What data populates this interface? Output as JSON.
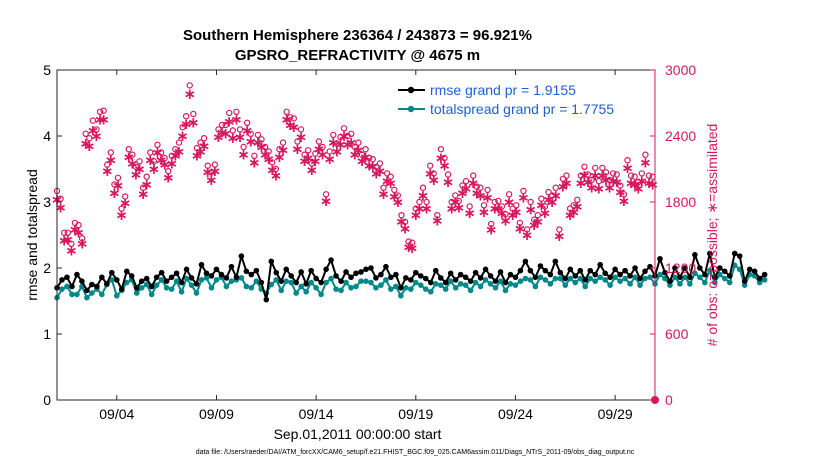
{
  "title_line1": "Southern Hemisphere 236364 / 243873 = 96.921%",
  "title_line2": "GPSRO_REFRACTIVITY @ 4675 m",
  "x_start_label": "Sep.01,2011 00:00:00 start",
  "footnote": "data file: /Users/raeder/DAI/ATM_forcXX/CAM6_setup/f.e21.FHIST_BGC.f09_025.CAM6assim.011/Diags_NTrS_2011-09/obs_diag_output.nc",
  "colors": {
    "rmse": "#000000",
    "spread": "#00888a",
    "obs": "#d6195f",
    "legend_text": "#1f5fd6"
  },
  "chart_data": {
    "type": "line",
    "title": "Southern Hemisphere 236364 / 243873 = 96.921%",
    "subtitle": "GPSRO_REFRACTIVITY @ 4675 m",
    "xlabel": "Sep.01,2011 00:00:00 start",
    "ylabel_left": "rmse and totalspread",
    "ylabel_right": "# of obs: o=possible; ∗=assimilated",
    "xlim": [
      1.0,
      31.0
    ],
    "ylim_left": [
      0,
      5
    ],
    "ylim_right": [
      0,
      3000
    ],
    "x_ticks": [
      4,
      9,
      14,
      19,
      24,
      29
    ],
    "x_tick_labels": [
      "09/04",
      "09/09",
      "09/14",
      "09/19",
      "09/24",
      "09/29"
    ],
    "y_left_ticks": [
      0,
      1,
      2,
      3,
      4,
      5
    ],
    "y_left_tick_labels": [
      "0",
      "1",
      "2",
      "3",
      "4",
      "5"
    ],
    "y_right_ticks": [
      0,
      600,
      1200,
      1800,
      2400,
      3000
    ],
    "y_right_tick_labels": [
      "0",
      "600",
      "1200",
      "1800",
      "2400",
      "3000"
    ],
    "grid": false,
    "legend_position": "top-right",
    "x_step_days": 0.25,
    "series": [
      {
        "name": "rmse grand pr = 1.9155",
        "axis": "left",
        "values": [
          1.7,
          1.82,
          1.86,
          1.72,
          1.9,
          1.8,
          1.66,
          1.75,
          1.72,
          1.86,
          1.76,
          1.93,
          1.82,
          1.68,
          1.95,
          1.88,
          1.7,
          1.8,
          1.84,
          1.72,
          1.86,
          1.93,
          1.8,
          1.86,
          1.92,
          1.78,
          1.98,
          1.85,
          1.76,
          2.05,
          1.92,
          1.88,
          1.98,
          1.9,
          1.85,
          2.02,
          1.86,
          2.18,
          1.95,
          1.9,
          1.96,
          1.78,
          1.52,
          2.1,
          1.93,
          1.8,
          1.98,
          1.88,
          1.78,
          1.94,
          1.76,
          1.96,
          1.84,
          1.78,
          1.98,
          2.12,
          1.88,
          1.8,
          1.94,
          1.86,
          1.92,
          1.94,
          1.98,
          2.0,
          1.85,
          1.9,
          2.02,
          1.86,
          1.9,
          1.7,
          1.85,
          1.82,
          1.93,
          1.88,
          1.84,
          1.78,
          1.96,
          1.85,
          1.78,
          1.92,
          1.82,
          1.9,
          1.86,
          1.8,
          1.93,
          1.85,
          1.98,
          1.88,
          1.8,
          1.94,
          1.78,
          1.9,
          1.86,
          1.96,
          2.1,
          1.96,
          1.86,
          2.03,
          1.96,
          1.9,
          2.1,
          1.93,
          1.84,
          1.98,
          1.88,
          1.96,
          1.82,
          1.96,
          1.9,
          2.05,
          1.92,
          1.86,
          1.98,
          1.9,
          1.96,
          1.88,
          2.0,
          1.84,
          1.95,
          2.02,
          1.88,
          2.14,
          1.93,
          1.8,
          2.0,
          1.86,
          2.0,
          1.86,
          2.2,
          2.0,
          1.9,
          2.22,
          1.86,
          2.0,
          1.95,
          1.88,
          2.22,
          2.18,
          1.8,
          1.98,
          1.95,
          1.84,
          1.9
        ]
      },
      {
        "name": "totalspread grand pr = 1.7755",
        "axis": "left",
        "values": [
          1.55,
          1.68,
          1.72,
          1.6,
          1.6,
          1.72,
          1.55,
          1.62,
          1.68,
          1.6,
          1.75,
          1.82,
          1.58,
          1.66,
          1.78,
          1.82,
          1.62,
          1.7,
          1.75,
          1.6,
          1.74,
          1.82,
          1.7,
          1.68,
          1.8,
          1.64,
          1.84,
          1.74,
          1.62,
          1.82,
          1.85,
          1.7,
          1.82,
          1.86,
          1.72,
          1.8,
          1.82,
          1.85,
          1.72,
          1.7,
          1.8,
          1.68,
          1.62,
          1.75,
          1.82,
          1.66,
          1.8,
          1.78,
          1.62,
          1.72,
          1.64,
          1.78,
          1.7,
          1.6,
          1.78,
          1.84,
          1.68,
          1.66,
          1.78,
          1.7,
          1.72,
          1.8,
          1.8,
          1.78,
          1.7,
          1.74,
          1.82,
          1.68,
          1.72,
          1.58,
          1.7,
          1.68,
          1.78,
          1.74,
          1.68,
          1.64,
          1.76,
          1.74,
          1.68,
          1.8,
          1.7,
          1.76,
          1.74,
          1.66,
          1.78,
          1.72,
          1.82,
          1.76,
          1.7,
          1.8,
          1.66,
          1.76,
          1.74,
          1.8,
          1.84,
          1.82,
          1.72,
          1.86,
          1.82,
          1.76,
          1.84,
          1.84,
          1.74,
          1.84,
          1.78,
          1.84,
          1.72,
          1.84,
          1.8,
          1.86,
          1.82,
          1.74,
          1.86,
          1.8,
          1.84,
          1.76,
          1.86,
          1.74,
          1.84,
          1.86,
          1.76,
          1.9,
          1.84,
          1.74,
          1.86,
          1.76,
          1.86,
          1.76,
          1.92,
          1.86,
          1.78,
          1.96,
          1.78,
          1.9,
          1.84,
          1.78,
          2.04,
          1.98,
          1.74,
          1.9,
          1.88,
          1.78,
          1.82
        ]
      },
      {
        "name": "possible",
        "axis": "right",
        "marker": "o",
        "values": [
          1900,
          1830,
          1520,
          1520,
          1420,
          1610,
          1590,
          1470,
          2420,
          2380,
          2540,
          2460,
          2620,
          2630,
          2140,
          2250,
          1960,
          2020,
          1740,
          1850,
          2280,
          2230,
          2120,
          2170,
          1930,
          2030,
          2250,
          2170,
          2320,
          2250,
          2200,
          2080,
          2220,
          2280,
          2340,
          2480,
          2580,
          2860,
          2600,
          2290,
          2340,
          2380,
          2130,
          2070,
          2140,
          2460,
          2500,
          2500,
          2610,
          2450,
          2620,
          2460,
          2300,
          2520,
          2420,
          2220,
          2410,
          2370,
          2300,
          2260,
          2160,
          2100,
          2280,
          2340,
          2620,
          2570,
          2560,
          2350,
          2460,
          2230,
          2270,
          2150,
          2240,
          2350,
          2300,
          1870,
          2260,
          2410,
          2330,
          2390,
          2470,
          2400,
          2420,
          2300,
          2340,
          2230,
          2280,
          2200,
          2190,
          2120,
          2150,
          1930,
          2060,
          2030,
          1910,
          1860,
          1680,
          1620,
          1440,
          1430,
          1740,
          1800,
          1930,
          1800,
          2130,
          2060,
          1680,
          2280,
          2200,
          2050,
          1800,
          1860,
          1810,
          1950,
          1990,
          1760,
          2040,
          1940,
          1930,
          1770,
          1910,
          1600,
          1800,
          1810,
          1760,
          1690,
          1870,
          1740,
          1770,
          1610,
          1900,
          1550,
          1800,
          1640,
          1680,
          1830,
          1760,
          1890,
          1860,
          1930,
          1550,
          2010,
          2040,
          1740,
          1770,
          1820,
          2040,
          2120,
          2050,
          2000,
          2110,
          1990,
          2110,
          2070,
          2000,
          2060,
          2050,
          1950,
          1870,
          2180,
          2040,
          2030,
          1980,
          2060,
          2230,
          2040,
          2030
        ]
      },
      {
        "name": "assimilated",
        "axis": "right",
        "marker": "*",
        "values": [
          1830,
          1760,
          1460,
          1470,
          1370,
          1560,
          1530,
          1430,
          2340,
          2320,
          2460,
          2410,
          2560,
          2560,
          2090,
          2190,
          1890,
          1960,
          1690,
          1800,
          2220,
          2160,
          2060,
          2110,
          1880,
          1970,
          2190,
          2110,
          2260,
          2190,
          2150,
          2030,
          2160,
          2230,
          2270,
          2410,
          2520,
          2790,
          2530,
          2230,
          2270,
          2320,
          2080,
          2010,
          2090,
          2400,
          2440,
          2430,
          2540,
          2390,
          2560,
          2400,
          2240,
          2460,
          2360,
          2170,
          2350,
          2310,
          2240,
          2200,
          2100,
          2050,
          2220,
          2280,
          2560,
          2510,
          2490,
          2290,
          2400,
          2180,
          2210,
          2100,
          2180,
          2290,
          2240,
          1820,
          2200,
          2350,
          2270,
          2330,
          2410,
          2330,
          2350,
          2240,
          2280,
          2180,
          2220,
          2140,
          2130,
          2070,
          2090,
          1880,
          2000,
          1980,
          1860,
          1810,
          1630,
          1570,
          1400,
          1390,
          1690,
          1750,
          1870,
          1750,
          2070,
          2010,
          1640,
          2210,
          2140,
          1990,
          1750,
          1810,
          1760,
          1890,
          1930,
          1710,
          1980,
          1890,
          1870,
          1720,
          1850,
          1560,
          1750,
          1750,
          1710,
          1640,
          1810,
          1690,
          1720,
          1570,
          1850,
          1510,
          1740,
          1600,
          1630,
          1780,
          1710,
          1830,
          1810,
          1870,
          1500,
          1950,
          1980,
          1690,
          1720,
          1770,
          1980,
          2050,
          1990,
          1940,
          2050,
          1930,
          2050,
          2010,
          1940,
          2000,
          1990,
          1900,
          1820,
          2120,
          1980,
          1970,
          1930,
          2000,
          2170,
          1980,
          1970
        ]
      }
    ],
    "obs_x_start": 1.0,
    "obs_x_step": 0.18
  }
}
